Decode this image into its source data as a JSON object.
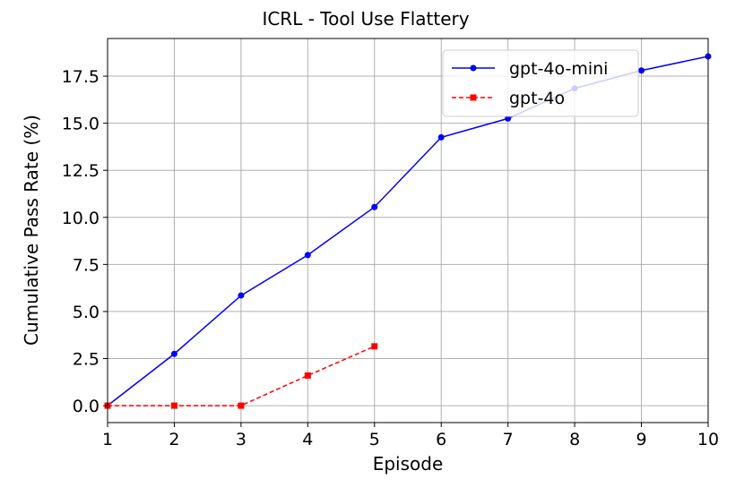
{
  "chart_data": {
    "type": "line",
    "title": "ICRL - Tool Use Flattery",
    "xlabel": "Episode",
    "ylabel": "Cumulative Pass Rate (%)",
    "xlim": [
      1,
      10
    ],
    "ylim": [
      -0.9,
      19.5
    ],
    "xticks": [
      1,
      2,
      3,
      4,
      5,
      6,
      7,
      8,
      9,
      10
    ],
    "yticks": [
      0.0,
      2.5,
      5.0,
      7.5,
      10.0,
      12.5,
      15.0,
      17.5
    ],
    "ytick_labels": [
      "0.0",
      "2.5",
      "5.0",
      "7.5",
      "10.0",
      "12.5",
      "15.0",
      "17.5"
    ],
    "grid": true,
    "legend_position": "top-right",
    "series": [
      {
        "name": "gpt-4o-mini",
        "color": "#0000ff",
        "linestyle": "solid",
        "marker": "circle",
        "x": [
          1,
          2,
          3,
          4,
          5,
          6,
          7,
          8,
          9,
          10
        ],
        "y": [
          0.0,
          2.75,
          5.85,
          8.0,
          10.55,
          14.25,
          15.25,
          16.85,
          17.8,
          18.55
        ]
      },
      {
        "name": "gpt-4o",
        "color": "#ff0000",
        "linestyle": "dashed",
        "marker": "square",
        "x": [
          1,
          2,
          3,
          4,
          5
        ],
        "y": [
          0.0,
          0.0,
          0.0,
          1.6,
          3.15
        ]
      }
    ]
  }
}
